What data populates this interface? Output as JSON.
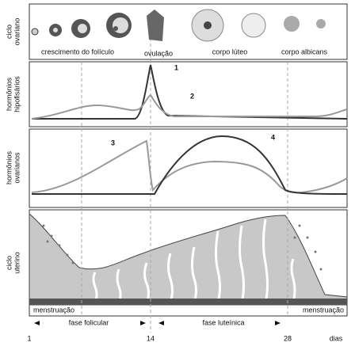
{
  "panel_labels": {
    "ovarian": [
      "ciclo",
      "ovariano"
    ],
    "pituitary": [
      "hormônios",
      "hipofisários"
    ],
    "ovarian_hormones": [
      "hormônios",
      "ovarianos"
    ],
    "uterine": [
      "ciclo",
      "uterino"
    ]
  },
  "ovarian_stages": {
    "growth": "crescimento do folículo",
    "ovulation": "ovulação",
    "corpus_luteum": "corpo lúteo",
    "corpus_albicans": "corpo albicans"
  },
  "curve_labels": [
    "1",
    "2",
    "3",
    "4"
  ],
  "menstruation": [
    "menstruação",
    "menstruação"
  ],
  "phases": {
    "follicular": "fase folicular",
    "luteal": "fase luteínica"
  },
  "axis": {
    "days": [
      "1",
      "14",
      "28"
    ],
    "unit": "dias"
  }
}
